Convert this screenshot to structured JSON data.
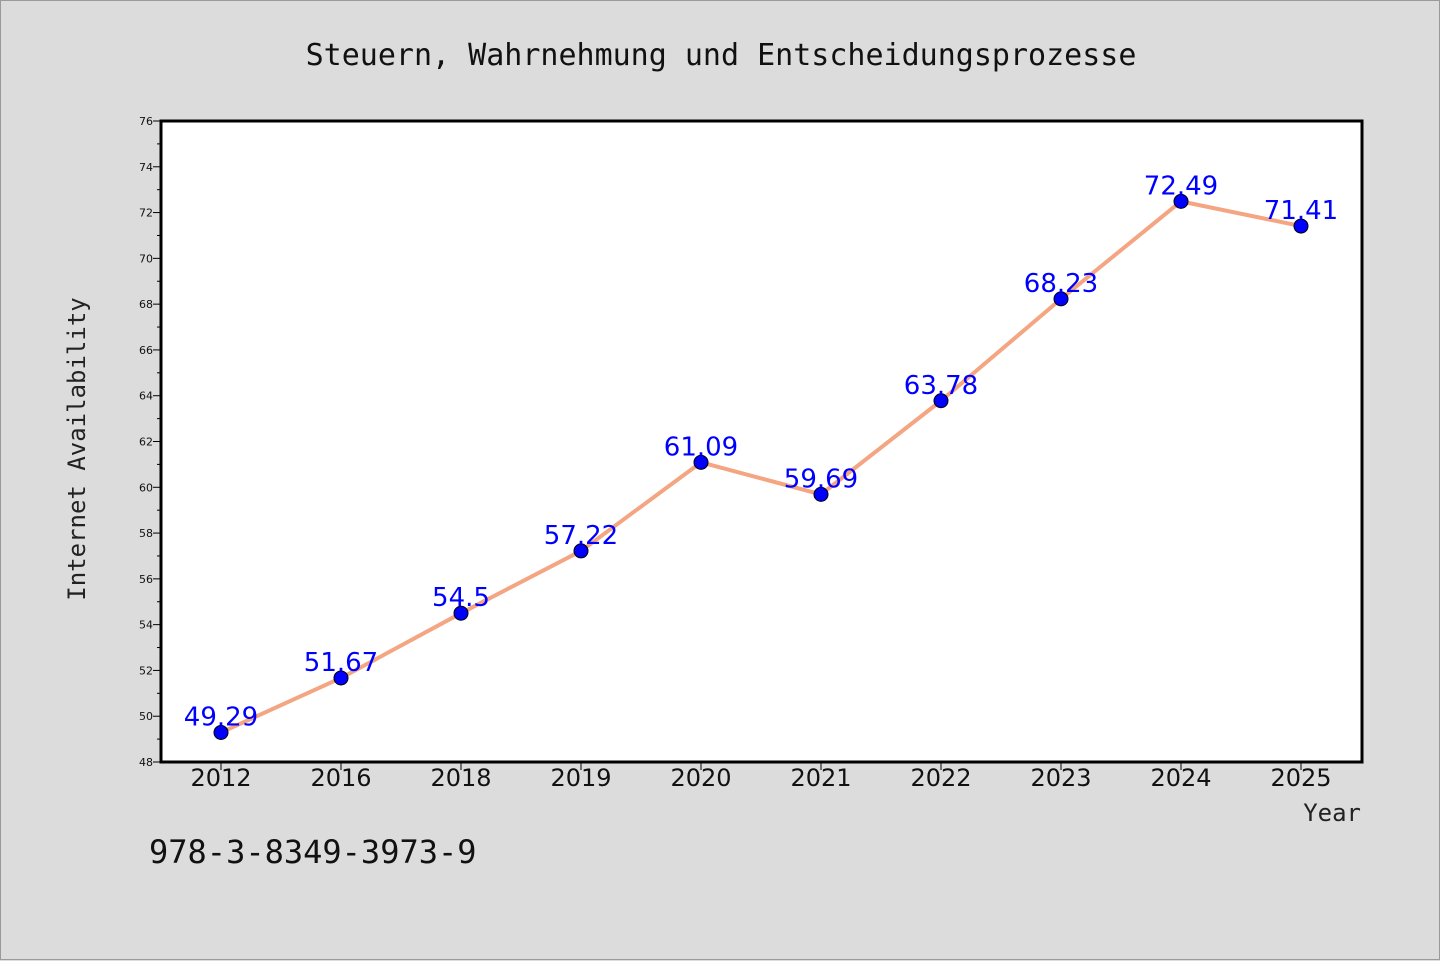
{
  "chart_data": {
    "type": "line",
    "title": "Steuern, Wahrnehmung und Entscheidungsprozesse",
    "xlabel": "Year",
    "ylabel": "Internet Availability",
    "categories": [
      "2012",
      "2016",
      "2018",
      "2019",
      "2020",
      "2021",
      "2022",
      "2023",
      "2024",
      "2025"
    ],
    "series": [
      {
        "values": [
          49.29,
          51.67,
          54.5,
          57.22,
          61.09,
          59.69,
          63.78,
          68.23,
          72.49,
          71.41
        ],
        "labels": [
          "49.29",
          "51.67",
          "54.5",
          "57.22",
          "61.09",
          "59.69",
          "63.78",
          "68.23",
          "72.49",
          "71.41"
        ],
        "line_color": "#f4a582",
        "marker_color": "#0000ff",
        "label_color": "#0000ff"
      }
    ],
    "ylim": [
      48,
      76
    ],
    "yticks": [
      "48",
      "50",
      "52",
      "54",
      "56",
      "58",
      "60",
      "62",
      "64",
      "66",
      "68",
      "70",
      "72",
      "74",
      "76"
    ],
    "grid": false,
    "legend": "none"
  },
  "footer": {
    "isbn": "978-3-8349-3973-9"
  },
  "colors": {
    "background": "#dcdcdc",
    "plot_background": "#ffffff",
    "axis": "#000000"
  }
}
